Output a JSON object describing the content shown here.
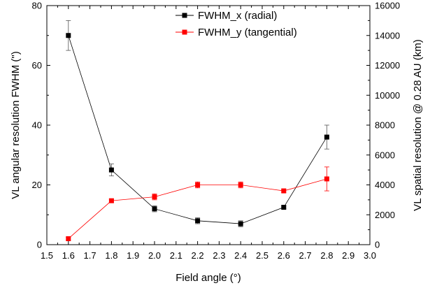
{
  "chart_data": {
    "type": "line",
    "title": "",
    "xlabel": "Field angle (°)",
    "ylabel_left": "VL angular resolution FWHM (\")",
    "ylabel_right": "VL spatial resolution @ 0.28 AU (km)",
    "xlim": [
      1.5,
      3.0
    ],
    "ylim_left": [
      0,
      80
    ],
    "ylim_right": [
      0,
      16000
    ],
    "x_ticks": [
      "1.5",
      "1.6",
      "1.7",
      "1.8",
      "1.9",
      "2.0",
      "2.1",
      "2.2",
      "2.3",
      "2.4",
      "2.5",
      "2.6",
      "2.7",
      "2.8",
      "2.9",
      "3.0"
    ],
    "y_ticks_left": [
      "0",
      "20",
      "40",
      "60",
      "80"
    ],
    "y_ticks_right": [
      "0",
      "2000",
      "4000",
      "6000",
      "8000",
      "10000",
      "12000",
      "14000",
      "16000"
    ],
    "grid": false,
    "legend_position": "top-center",
    "series": [
      {
        "name": "FWHM_x (radial)",
        "color": "#000000",
        "x": [
          1.6,
          1.8,
          2.0,
          2.2,
          2.4,
          2.6,
          2.8
        ],
        "y": [
          70,
          25,
          12,
          8,
          7,
          12.5,
          36
        ],
        "err": [
          5,
          2,
          1,
          1,
          1,
          0.5,
          4
        ]
      },
      {
        "name": "FWHM_y (tangential)",
        "color": "#ff0000",
        "x": [
          1.6,
          1.8,
          2.0,
          2.2,
          2.4,
          2.6,
          2.8
        ],
        "y": [
          2,
          14.7,
          16,
          20,
          20,
          18,
          22
        ],
        "err": [
          0.5,
          0.5,
          1,
          1,
          1,
          0.5,
          4
        ]
      }
    ]
  }
}
